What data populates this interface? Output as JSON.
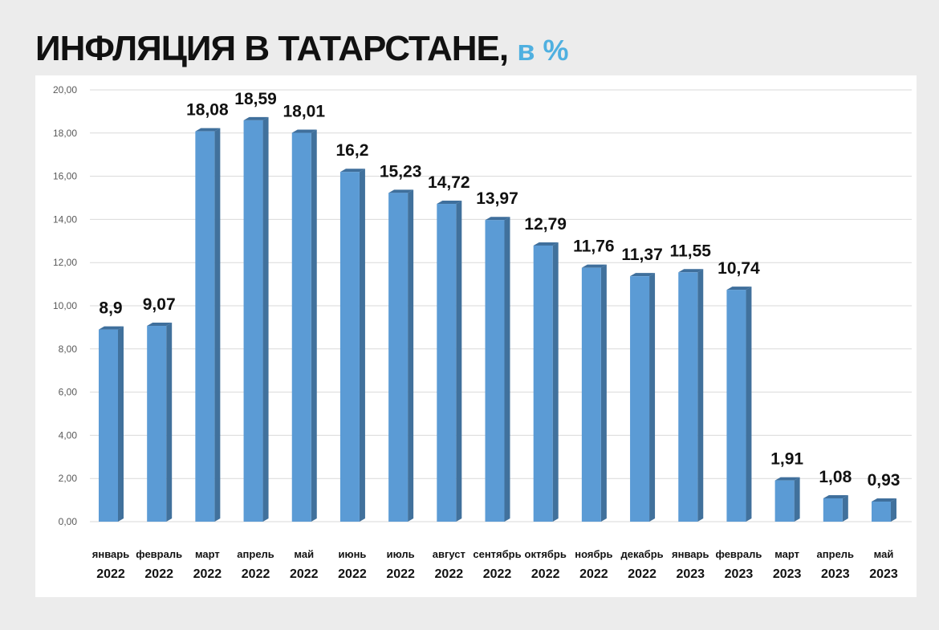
{
  "title": {
    "main": "ИНФЛЯЦИЯ В ТАТАРСТАНЕ,",
    "unit": "в %"
  },
  "colors": {
    "bar_front": "#5b9bd5",
    "bar_side": "#41719c",
    "bar_top": "#3f6f9c",
    "unit_text": "#4fb0e0",
    "grid": "#d9d9d9"
  },
  "chart_data": {
    "type": "bar",
    "categories": [
      [
        "январь",
        "2022"
      ],
      [
        "февраль",
        "2022"
      ],
      [
        "март",
        "2022"
      ],
      [
        "апрель",
        "2022"
      ],
      [
        "май",
        "2022"
      ],
      [
        "июнь",
        "2022"
      ],
      [
        "июль",
        "2022"
      ],
      [
        "август",
        "2022"
      ],
      [
        "сентябрь",
        "2022"
      ],
      [
        "октябрь",
        "2022"
      ],
      [
        "ноябрь",
        "2022"
      ],
      [
        "декабрь",
        "2022"
      ],
      [
        "январь",
        "2023"
      ],
      [
        "февраль",
        "2023"
      ],
      [
        "март",
        "2023"
      ],
      [
        "апрель",
        "2023"
      ],
      [
        "май",
        "2023"
      ]
    ],
    "values": [
      8.9,
      9.07,
      18.08,
      18.59,
      18.01,
      16.2,
      15.23,
      14.72,
      13.97,
      12.79,
      11.76,
      11.37,
      11.55,
      10.74,
      1.91,
      1.08,
      0.93
    ],
    "value_labels": [
      "8,9",
      "9,07",
      "18,08",
      "18,59",
      "18,01",
      "16,2",
      "15,23",
      "14,72",
      "13,97",
      "12,79",
      "11,76",
      "11,37",
      "11,55",
      "10,74",
      "1,91",
      "1,08",
      "0,93"
    ],
    "y_ticks": [
      "0,00",
      "2,00",
      "4,00",
      "6,00",
      "8,00",
      "10,00",
      "12,00",
      "14,00",
      "16,00",
      "18,00",
      "20,00"
    ],
    "ylim": [
      0,
      20
    ],
    "grid": true,
    "legend": "none"
  }
}
